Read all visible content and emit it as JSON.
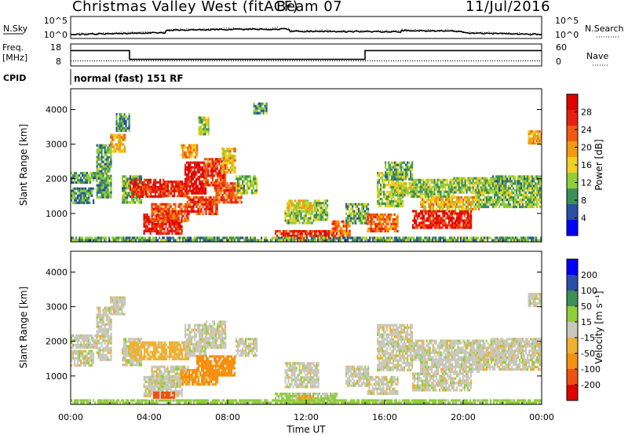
{
  "header": {
    "station": "Christmas Valley West (fitACF)",
    "beam": "Beam 07",
    "date": "11/Jul/2016"
  },
  "left_labels": {
    "nsky": "N.Sky",
    "freq_line1": "Freq.",
    "freq_line2": "[MHz]",
    "cpid": "CPID"
  },
  "right_labels": {
    "nsearch": "N.Search",
    "nave": "Nave"
  },
  "cpid_text": "normal (fast) 151 RF",
  "colors": {
    "power": [
      "#0000ff",
      "#2a4fa6",
      "#3e8e5a",
      "#8fce3a",
      "#f0d020",
      "#f59a10",
      "#f05a10",
      "#e82010",
      "#e00000"
    ],
    "velocity": [
      "#e00000",
      "#f05010",
      "#f59010",
      "#f0b030",
      "#c8c8c0",
      "#8fce3a",
      "#3e8e5a",
      "#2a4fa6",
      "#0000ff"
    ]
  },
  "chart_data": [
    {
      "type": "line",
      "panel": "noise",
      "y_ticks": [
        "10^0",
        "10^5"
      ],
      "right_ticks": [
        "10^0",
        "10^5"
      ],
      "series": [
        {
          "name": "N.Sky"
        },
        {
          "name": "N.Search"
        }
      ]
    },
    {
      "type": "line",
      "panel": "frequency",
      "y_ticks": [
        "8",
        "18"
      ],
      "right_ticks": [
        "0",
        "60"
      ],
      "series": [
        {
          "name": "Freq.",
          "x": [
            0,
            3,
            3,
            15,
            15,
            24
          ],
          "values": [
            15.0,
            15.0,
            11.0,
            11.0,
            15.0,
            15.0
          ]
        },
        {
          "name": "Nave",
          "x": [
            0,
            24
          ],
          "values": [
            14,
            14
          ]
        }
      ],
      "xlim": [
        0,
        24
      ]
    },
    {
      "type": "heatmap",
      "panel": "power",
      "ylabel": "Slant Range [km]",
      "colorbar_label": "Power [dB]",
      "y_ticks": [
        "1000",
        "2000",
        "3000",
        "4000"
      ],
      "ylim": [
        180,
        4600
      ],
      "xlim": [
        0,
        24
      ],
      "colorbar_ticks": [
        "4",
        "8",
        "12",
        "16",
        "20",
        "24",
        "28"
      ],
      "colorbar_range": [
        0,
        32
      ],
      "patches": [
        {
          "t0": 0.0,
          "t1": 1.3,
          "r0": 1900,
          "r1": 2200,
          "v": 10
        },
        {
          "t0": 0.0,
          "t1": 1.2,
          "r0": 1300,
          "r1": 1750,
          "v": 9
        },
        {
          "t0": 1.3,
          "t1": 2.1,
          "r0": 1500,
          "r1": 3000,
          "v": 10
        },
        {
          "t0": 2.0,
          "t1": 2.8,
          "r0": 2800,
          "r1": 3300,
          "v": 18
        },
        {
          "t0": 2.3,
          "t1": 3.0,
          "r0": 3400,
          "r1": 3900,
          "v": 9
        },
        {
          "t0": 2.6,
          "t1": 3.6,
          "r0": 1300,
          "r1": 2100,
          "v": 11
        },
        {
          "t0": 3.0,
          "t1": 4.8,
          "r0": 1500,
          "r1": 2000,
          "v": 27
        },
        {
          "t0": 4.6,
          "t1": 6.0,
          "r0": 1500,
          "r1": 1950,
          "v": 26
        },
        {
          "t0": 5.8,
          "t1": 6.9,
          "r0": 1600,
          "r1": 2500,
          "v": 29
        },
        {
          "t0": 6.8,
          "t1": 7.9,
          "r0": 1800,
          "r1": 2600,
          "v": 25
        },
        {
          "t0": 7.7,
          "t1": 8.4,
          "r0": 2200,
          "r1": 2900,
          "v": 18
        },
        {
          "t0": 3.7,
          "t1": 5.7,
          "r0": 400,
          "r1": 1000,
          "v": 28
        },
        {
          "t0": 4.1,
          "t1": 6.0,
          "r0": 800,
          "r1": 1300,
          "v": 24
        },
        {
          "t0": 5.9,
          "t1": 7.5,
          "r0": 1000,
          "r1": 1500,
          "v": 25
        },
        {
          "t0": 7.3,
          "t1": 8.7,
          "r0": 1300,
          "r1": 1900,
          "v": 24
        },
        {
          "t0": 8.4,
          "t1": 9.5,
          "r0": 1600,
          "r1": 2100,
          "v": 12
        },
        {
          "t0": 5.6,
          "t1": 6.4,
          "r0": 2600,
          "r1": 3000,
          "v": 19
        },
        {
          "t0": 6.5,
          "t1": 7.0,
          "r0": 3300,
          "r1": 3800,
          "v": 13
        },
        {
          "t0": 9.3,
          "t1": 10.0,
          "r0": 3900,
          "r1": 4200,
          "v": 10
        },
        {
          "t0": 10.4,
          "t1": 13.6,
          "r0": 200,
          "r1": 520,
          "v": 26
        },
        {
          "t0": 13.3,
          "t1": 14.2,
          "r0": 350,
          "r1": 800,
          "v": 22
        },
        {
          "t0": 10.9,
          "t1": 12.4,
          "r0": 700,
          "r1": 1100,
          "v": 12
        },
        {
          "t0": 11.0,
          "t1": 12.6,
          "r0": 1100,
          "r1": 1400,
          "v": 16
        },
        {
          "t0": 12.4,
          "t1": 13.1,
          "r0": 800,
          "r1": 1400,
          "v": 12
        },
        {
          "t0": 14.0,
          "t1": 15.2,
          "r0": 700,
          "r1": 1300,
          "v": 11
        },
        {
          "t0": 15.1,
          "t1": 16.7,
          "r0": 500,
          "r1": 1000,
          "v": 22
        },
        {
          "t0": 15.6,
          "t1": 16.9,
          "r0": 1200,
          "r1": 2200,
          "v": 13
        },
        {
          "t0": 16.0,
          "t1": 17.4,
          "r0": 2000,
          "r1": 2500,
          "v": 11
        },
        {
          "t0": 16.5,
          "t1": 17.6,
          "r0": 1500,
          "r1": 1900,
          "v": 14
        },
        {
          "t0": 17.4,
          "t1": 20.4,
          "r0": 600,
          "r1": 1100,
          "v": 27
        },
        {
          "t0": 17.8,
          "t1": 20.8,
          "r0": 1100,
          "r1": 1500,
          "v": 18
        },
        {
          "t0": 17.3,
          "t1": 19.5,
          "r0": 1500,
          "r1": 2000,
          "v": 12
        },
        {
          "t0": 19.5,
          "t1": 22.2,
          "r0": 1600,
          "r1": 2050,
          "v": 13
        },
        {
          "t0": 20.6,
          "t1": 24.0,
          "r0": 1200,
          "r1": 1700,
          "v": 12
        },
        {
          "t0": 21.4,
          "t1": 24.0,
          "r0": 1700,
          "r1": 2100,
          "v": 11
        },
        {
          "t0": 23.3,
          "t1": 24.0,
          "r0": 3000,
          "r1": 3400,
          "v": 18
        },
        {
          "t0": 0.0,
          "t1": 24.0,
          "r0": 180,
          "r1": 330,
          "v": 10
        }
      ]
    },
    {
      "type": "heatmap",
      "panel": "velocity",
      "ylabel": "Slant Range [km]",
      "xlabel": "Time UT",
      "colorbar_label": "Velocity [m s⁻¹]",
      "y_ticks": [
        "1000",
        "2000",
        "3000",
        "4000"
      ],
      "x_ticks": [
        "00:00",
        "04:00",
        "08:00",
        "12:00",
        "16:00",
        "20:00",
        "00:00"
      ],
      "ylim": [
        180,
        4600
      ],
      "xlim": [
        0,
        24
      ],
      "colorbar_ticks": [
        "-200",
        "-100",
        "-50",
        "-15",
        "15",
        "50",
        "100",
        "200"
      ],
      "colorbar_bounds": [
        -250,
        -200,
        -100,
        -50,
        -15,
        15,
        50,
        100,
        200,
        250
      ],
      "patches": [
        {
          "t0": 0.0,
          "t1": 1.3,
          "r0": 1800,
          "r1": 2200,
          "v": 0
        },
        {
          "t0": 0.0,
          "t1": 1.2,
          "r0": 1300,
          "r1": 1750,
          "v": 0
        },
        {
          "t0": 1.3,
          "t1": 2.1,
          "r0": 1500,
          "r1": 3000,
          "v": 0
        },
        {
          "t0": 2.0,
          "t1": 2.8,
          "r0": 2800,
          "r1": 3300,
          "v": 0
        },
        {
          "t0": 2.6,
          "t1": 3.6,
          "r0": 1300,
          "r1": 2100,
          "v": 0
        },
        {
          "t0": 3.0,
          "t1": 4.8,
          "r0": 1500,
          "r1": 2000,
          "v": -30
        },
        {
          "t0": 4.6,
          "t1": 6.0,
          "r0": 1500,
          "r1": 2000,
          "v": -30
        },
        {
          "t0": 5.8,
          "t1": 6.9,
          "r0": 1600,
          "r1": 2500,
          "v": 0
        },
        {
          "t0": 6.8,
          "t1": 7.9,
          "r0": 1800,
          "r1": 2600,
          "v": 0
        },
        {
          "t0": 3.7,
          "t1": 5.7,
          "r0": 400,
          "r1": 1000,
          "v": 0
        },
        {
          "t0": 4.1,
          "t1": 6.0,
          "r0": 800,
          "r1": 1300,
          "v": 0
        },
        {
          "t0": 5.6,
          "t1": 7.5,
          "r0": 750,
          "r1": 1200,
          "v": -60
        },
        {
          "t0": 6.4,
          "t1": 8.4,
          "r0": 1000,
          "r1": 1600,
          "v": -70
        },
        {
          "t0": 4.2,
          "t1": 5.3,
          "r0": 350,
          "r1": 550,
          "v": -120
        },
        {
          "t0": 8.4,
          "t1": 9.5,
          "r0": 1600,
          "r1": 2100,
          "v": 0
        },
        {
          "t0": 10.4,
          "t1": 13.6,
          "r0": 200,
          "r1": 520,
          "v": 20
        },
        {
          "t0": 11.6,
          "t1": 12.4,
          "r0": 300,
          "r1": 450,
          "v": -60
        },
        {
          "t0": 10.9,
          "t1": 12.6,
          "r0": 700,
          "r1": 1400,
          "v": 0
        },
        {
          "t0": 14.0,
          "t1": 15.2,
          "r0": 700,
          "r1": 1300,
          "v": 0
        },
        {
          "t0": 15.1,
          "t1": 16.7,
          "r0": 500,
          "r1": 1000,
          "v": 0
        },
        {
          "t0": 15.6,
          "t1": 17.4,
          "r0": 1200,
          "r1": 2500,
          "v": 0
        },
        {
          "t0": 17.4,
          "t1": 20.4,
          "r0": 600,
          "r1": 1100,
          "v": 0
        },
        {
          "t0": 17.8,
          "t1": 20.8,
          "r0": 1100,
          "r1": 1500,
          "v": 0
        },
        {
          "t0": 17.3,
          "t1": 22.2,
          "r0": 1500,
          "r1": 2050,
          "v": 0
        },
        {
          "t0": 20.6,
          "t1": 24.0,
          "r0": 1200,
          "r1": 1700,
          "v": 0
        },
        {
          "t0": 21.4,
          "t1": 24.0,
          "r0": 1700,
          "r1": 2100,
          "v": 0
        },
        {
          "t0": 23.3,
          "t1": 24.0,
          "r0": 3000,
          "r1": 3400,
          "v": 0
        },
        {
          "t0": 0.0,
          "t1": 24.0,
          "r0": 180,
          "r1": 330,
          "v": 30
        }
      ]
    }
  ]
}
